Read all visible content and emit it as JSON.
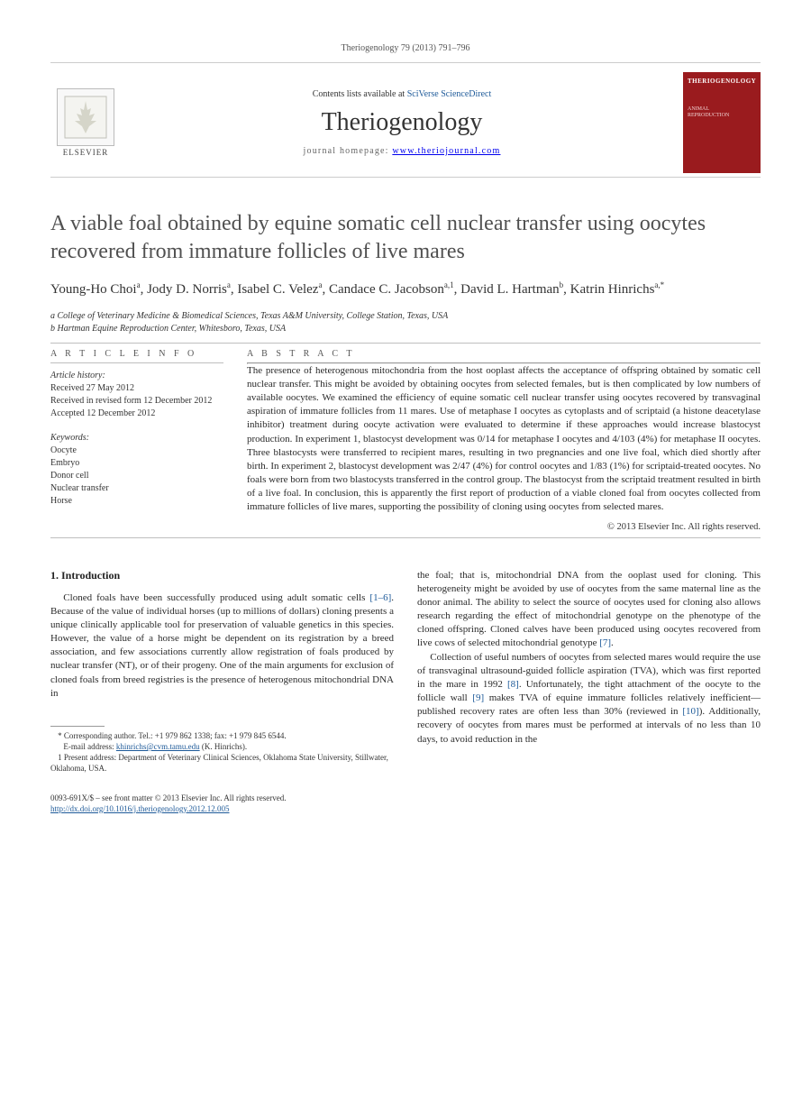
{
  "header": {
    "citation": "Theriogenology 79 (2013) 791–796"
  },
  "masthead": {
    "publisher_label": "ELSEVIER",
    "contents_prefix": "Contents lists available at ",
    "contents_link": "SciVerse ScienceDirect",
    "journal": "Theriogenology",
    "homepage_label": "journal homepage: ",
    "homepage_url": "www.theriojournal.com",
    "cover_title": "THERIOGENOLOGY",
    "cover_sub1": "ANIMAL",
    "cover_sub2": "REPRODUCTION"
  },
  "article": {
    "title": "A viable foal obtained by equine somatic cell nuclear transfer using oocytes recovered from immature follicles of live mares",
    "authors_html": "Young-Ho Choi<sup>a</sup>, Jody D. Norris<sup>a</sup>, Isabel C. Velez<sup>a</sup>, Candace C. Jacobson<sup>a,1</sup>, David L. Hartman<sup>b</sup>, Katrin Hinrichs<sup>a,*</sup>",
    "affiliations": [
      "a College of Veterinary Medicine & Biomedical Sciences, Texas A&M University, College Station, Texas, USA",
      "b Hartman Equine Reproduction Center, Whitesboro, Texas, USA"
    ]
  },
  "article_info": {
    "heading": "A R T I C L E   I N F O",
    "history_label": "Article history:",
    "history": [
      "Received 27 May 2012",
      "Received in revised form 12 December 2012",
      "Accepted 12 December 2012"
    ],
    "keywords_label": "Keywords:",
    "keywords": [
      "Oocyte",
      "Embryo",
      "Donor cell",
      "Nuclear transfer",
      "Horse"
    ]
  },
  "abstract": {
    "heading": "A B S T R A C T",
    "text": "The presence of heterogenous mitochondria from the host ooplast affects the acceptance of offspring obtained by somatic cell nuclear transfer. This might be avoided by obtaining oocytes from selected females, but is then complicated by low numbers of available oocytes. We examined the efficiency of equine somatic cell nuclear transfer using oocytes recovered by transvaginal aspiration of immature follicles from 11 mares. Use of metaphase I oocytes as cytoplasts and of scriptaid (a histone deacetylase inhibitor) treatment during oocyte activation were evaluated to determine if these approaches would increase blastocyst production. In experiment 1, blastocyst development was 0/14 for metaphase I oocytes and 4/103 (4%) for metaphase II oocytes. Three blastocysts were transferred to recipient mares, resulting in two pregnancies and one live foal, which died shortly after birth. In experiment 2, blastocyst development was 2/47 (4%) for control oocytes and 1/83 (1%) for scriptaid-treated oocytes. No foals were born from two blastocysts transferred in the control group. The blastocyst from the scriptaid treatment resulted in birth of a live foal. In conclusion, this is apparently the first report of production of a viable cloned foal from oocytes collected from immature follicles of live mares, supporting the possibility of cloning using oocytes from selected mares.",
    "copyright": "© 2013 Elsevier Inc. All rights reserved."
  },
  "body": {
    "section_heading": "1.  Introduction",
    "col1_p1": "Cloned foals have been successfully produced using adult somatic cells [1–6]. Because of the value of individual horses (up to millions of dollars) cloning presents a unique clinically applicable tool for preservation of valuable genetics in this species. However, the value of a horse might be dependent on its registration by a breed association, and few associations currently allow registration of foals produced by nuclear transfer (NT), or of their progeny. One of the main arguments for exclusion of cloned foals from breed registries is the presence of heterogenous mitochondrial DNA in",
    "col2_p1": "the foal; that is, mitochondrial DNA from the ooplast used for cloning. This heterogeneity might be avoided by use of oocytes from the same maternal line as the donor animal. The ability to select the source of oocytes used for cloning also allows research regarding the effect of mitochondrial genotype on the phenotype of the cloned offspring. Cloned calves have been produced using oocytes recovered from live cows of selected mitochondrial genotype [7].",
    "col2_p2": "Collection of useful numbers of oocytes from selected mares would require the use of transvaginal ultrasound-guided follicle aspiration (TVA), which was first reported in the mare in 1992 [8]. Unfortunately, the tight attachment of the oocyte to the follicle wall [9] makes TVA of equine immature follicles relatively inefficient—published recovery rates are often less than 30% (reviewed in [10]). Additionally, recovery of oocytes from mares must be performed at intervals of no less than 10 days, to avoid reduction in the"
  },
  "footnotes": {
    "corresponding": "* Corresponding author. Tel.: +1 979 862 1338; fax: +1 979 845 6544.",
    "email_label": "E-mail address: ",
    "email": "khinrichs@cvm.tamu.edu",
    "email_suffix": " (K. Hinrichs).",
    "present": "1 Present address: Department of Veterinary Clinical Sciences, Oklahoma State University, Stillwater, Oklahoma, USA."
  },
  "footer": {
    "line1": "0093-691X/$ – see front matter © 2013 Elsevier Inc. All rights reserved.",
    "doi": "http://dx.doi.org/10.1016/j.theriogenology.2012.12.005"
  },
  "colors": {
    "link": "#1e5a99",
    "cover_bg": "#9a1b1e",
    "text": "#333333",
    "rule": "#bfbfbf"
  }
}
